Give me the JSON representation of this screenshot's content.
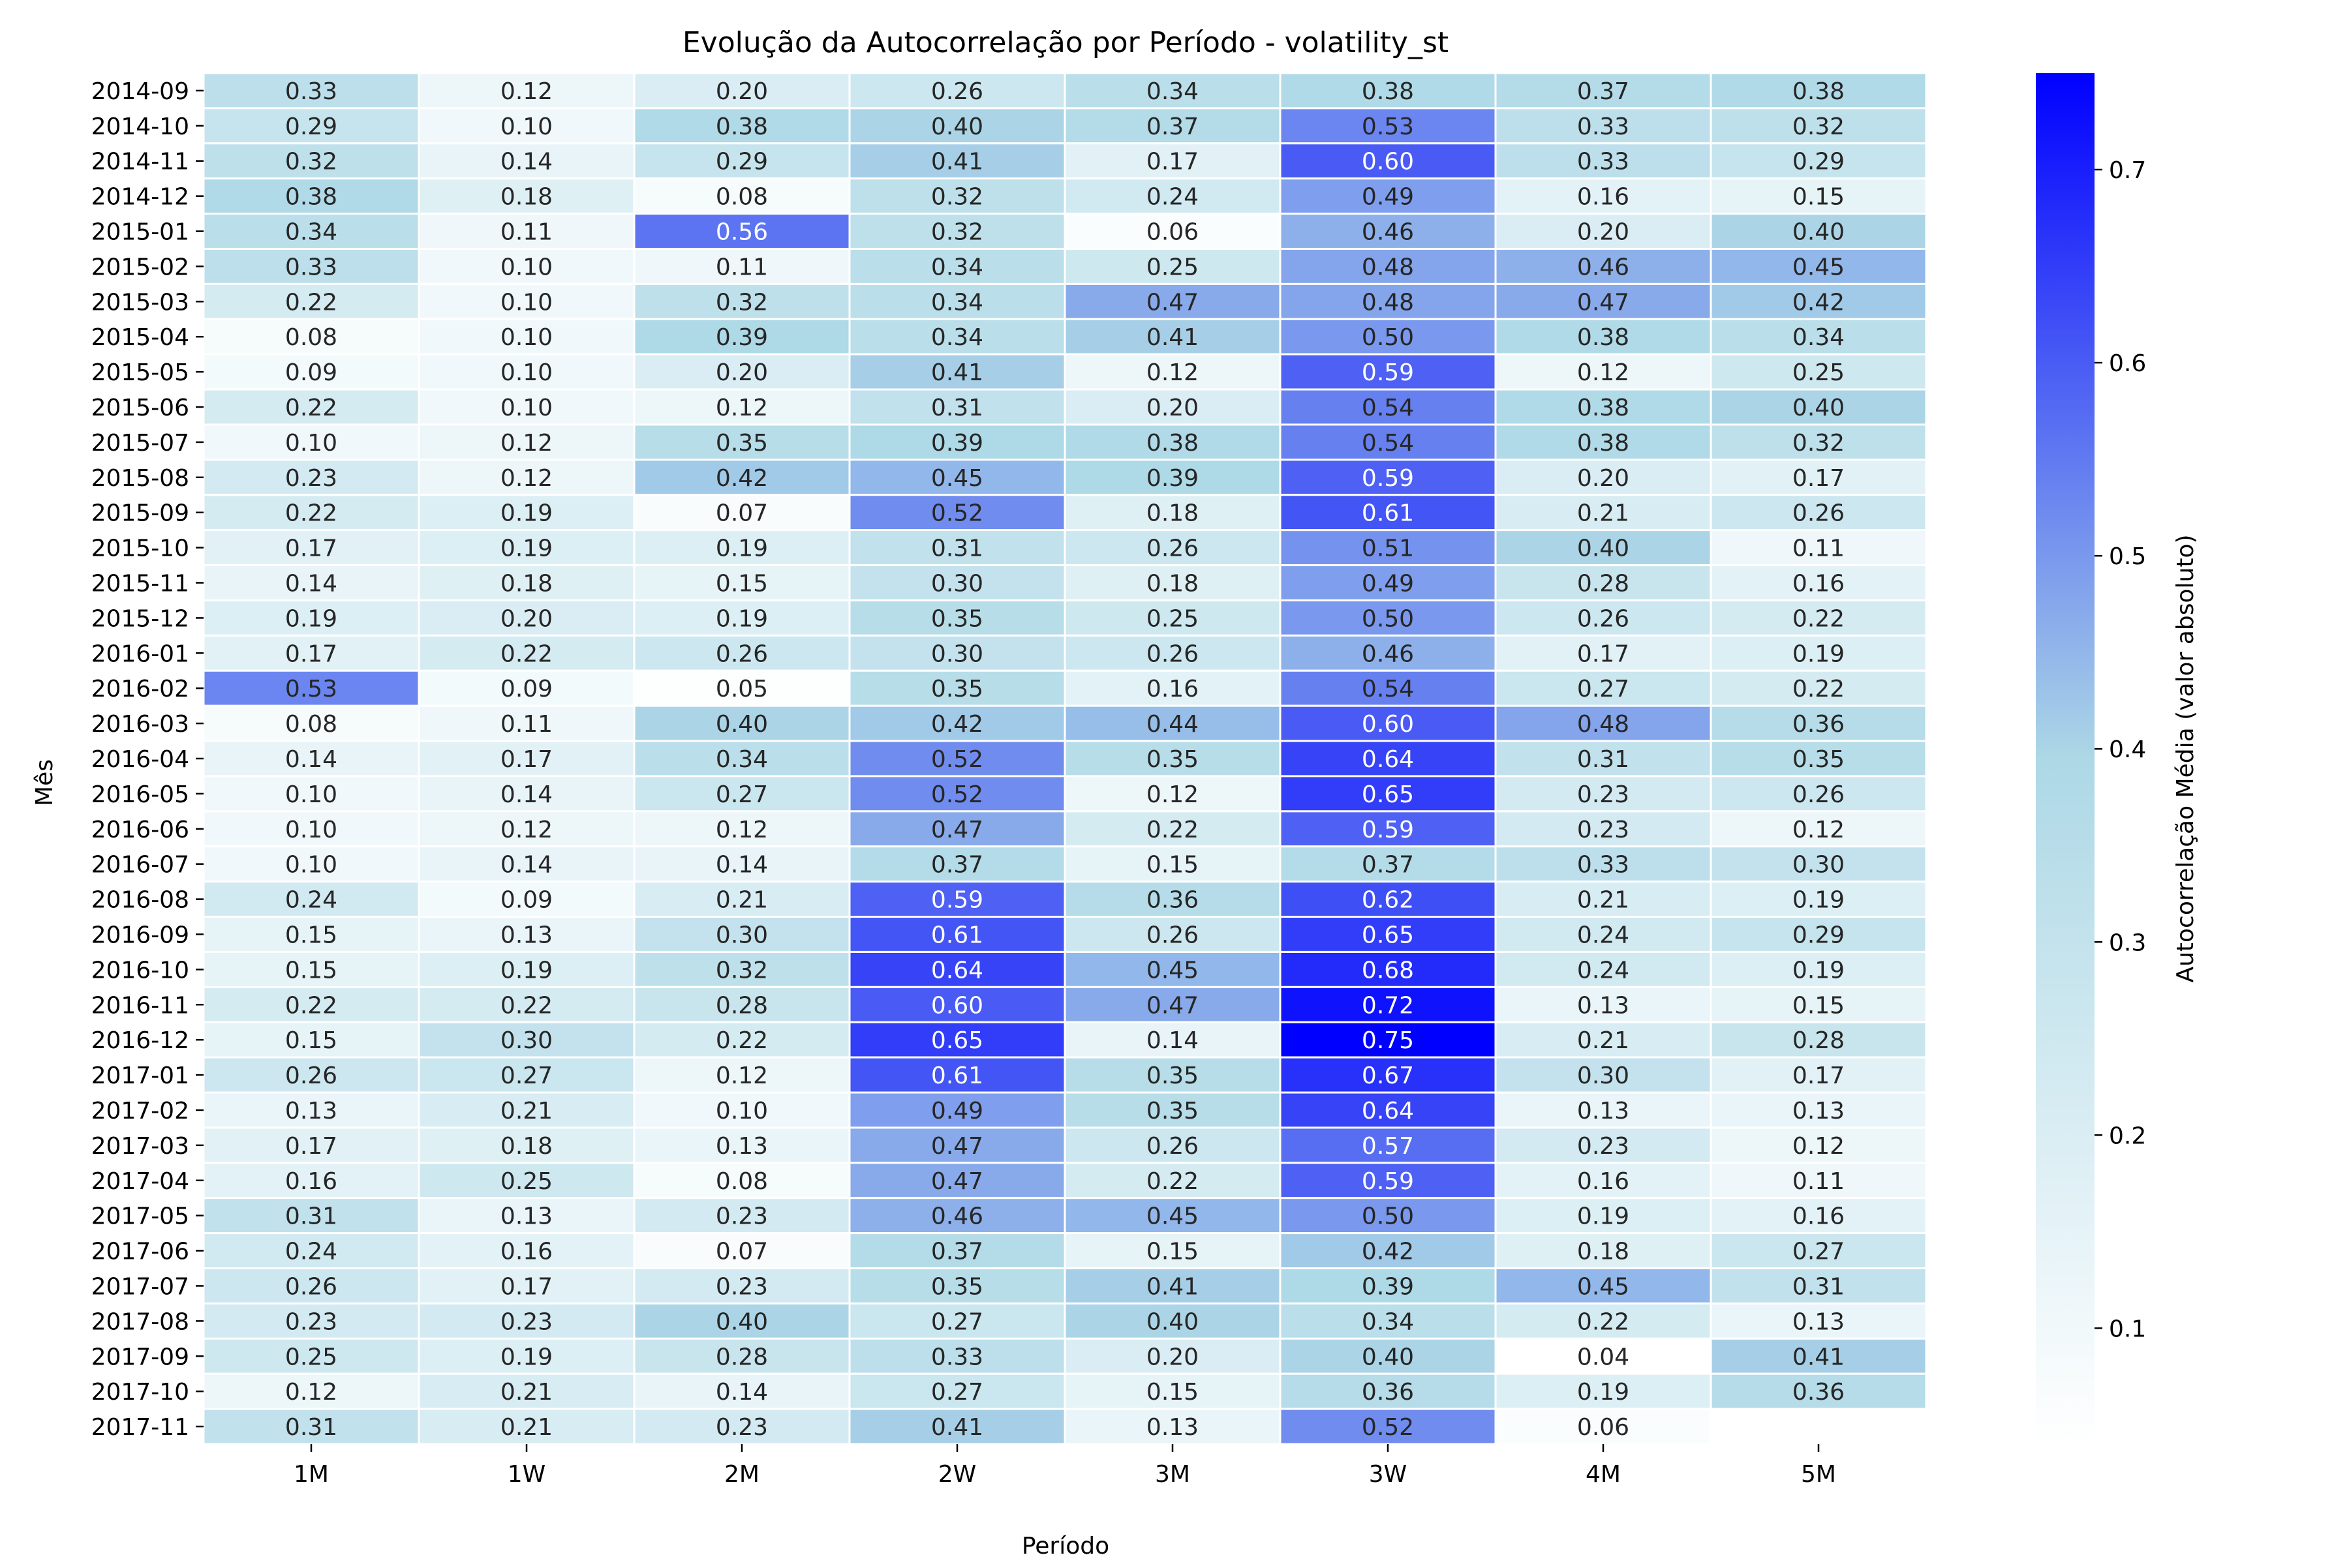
{
  "chart_data": {
    "type": "heatmap",
    "title": "Evolução da Autocorrelação por Período - volatility_st",
    "xlabel": "Período",
    "ylabel": "Mês",
    "colorbar_label": "Autocorrelação Média (valor absoluto)",
    "colorbar_range": [
      0.04,
      0.75
    ],
    "colorbar_ticks": [
      "0.1",
      "0.2",
      "0.3",
      "0.4",
      "0.5",
      "0.6",
      "0.7"
    ],
    "colorbar_tick_values": [
      0.1,
      0.2,
      0.3,
      0.4,
      0.5,
      0.6,
      0.7
    ],
    "colormap": [
      "#ffffff",
      "#add8e6",
      "#0000ff"
    ],
    "cell_border_color": "#ffffff",
    "columns": [
      "1M",
      "1W",
      "2M",
      "2W",
      "3M",
      "3W",
      "4M",
      "5M"
    ],
    "rows": [
      "2014-09",
      "2014-10",
      "2014-11",
      "2014-12",
      "2015-01",
      "2015-02",
      "2015-03",
      "2015-04",
      "2015-05",
      "2015-06",
      "2015-07",
      "2015-08",
      "2015-09",
      "2015-10",
      "2015-11",
      "2015-12",
      "2016-01",
      "2016-02",
      "2016-03",
      "2016-04",
      "2016-05",
      "2016-06",
      "2016-07",
      "2016-08",
      "2016-09",
      "2016-10",
      "2016-11",
      "2016-12",
      "2017-01",
      "2017-02",
      "2017-03",
      "2017-04",
      "2017-05",
      "2017-06",
      "2017-07",
      "2017-08",
      "2017-09",
      "2017-10",
      "2017-11"
    ],
    "values": [
      [
        0.33,
        0.12,
        0.2,
        0.26,
        0.34,
        0.38,
        0.37,
        0.38
      ],
      [
        0.29,
        0.1,
        0.38,
        0.4,
        0.37,
        0.53,
        0.33,
        0.32
      ],
      [
        0.32,
        0.14,
        0.29,
        0.41,
        0.17,
        0.6,
        0.33,
        0.29
      ],
      [
        0.38,
        0.18,
        0.08,
        0.32,
        0.24,
        0.49,
        0.16,
        0.15
      ],
      [
        0.34,
        0.11,
        0.56,
        0.32,
        0.06,
        0.46,
        0.2,
        0.4
      ],
      [
        0.33,
        0.1,
        0.11,
        0.34,
        0.25,
        0.48,
        0.46,
        0.45
      ],
      [
        0.22,
        0.1,
        0.32,
        0.34,
        0.47,
        0.48,
        0.47,
        0.42
      ],
      [
        0.08,
        0.1,
        0.39,
        0.34,
        0.41,
        0.5,
        0.38,
        0.34
      ],
      [
        0.09,
        0.1,
        0.2,
        0.41,
        0.12,
        0.59,
        0.12,
        0.25
      ],
      [
        0.22,
        0.1,
        0.12,
        0.31,
        0.2,
        0.54,
        0.38,
        0.4
      ],
      [
        0.1,
        0.12,
        0.35,
        0.39,
        0.38,
        0.54,
        0.38,
        0.32
      ],
      [
        0.23,
        0.12,
        0.42,
        0.45,
        0.39,
        0.59,
        0.2,
        0.17
      ],
      [
        0.22,
        0.19,
        0.07,
        0.52,
        0.18,
        0.61,
        0.21,
        0.26
      ],
      [
        0.17,
        0.19,
        0.19,
        0.31,
        0.26,
        0.51,
        0.4,
        0.11
      ],
      [
        0.14,
        0.18,
        0.15,
        0.3,
        0.18,
        0.49,
        0.28,
        0.16
      ],
      [
        0.19,
        0.2,
        0.19,
        0.35,
        0.25,
        0.5,
        0.26,
        0.22
      ],
      [
        0.17,
        0.22,
        0.26,
        0.3,
        0.26,
        0.46,
        0.17,
        0.19
      ],
      [
        0.53,
        0.09,
        0.05,
        0.35,
        0.16,
        0.54,
        0.27,
        0.22
      ],
      [
        0.08,
        0.11,
        0.4,
        0.42,
        0.44,
        0.6,
        0.48,
        0.36
      ],
      [
        0.14,
        0.17,
        0.34,
        0.52,
        0.35,
        0.64,
        0.31,
        0.35
      ],
      [
        0.1,
        0.14,
        0.27,
        0.52,
        0.12,
        0.65,
        0.23,
        0.26
      ],
      [
        0.1,
        0.12,
        0.12,
        0.47,
        0.22,
        0.59,
        0.23,
        0.12
      ],
      [
        0.1,
        0.14,
        0.14,
        0.37,
        0.15,
        0.37,
        0.33,
        0.3
      ],
      [
        0.24,
        0.09,
        0.21,
        0.59,
        0.36,
        0.62,
        0.21,
        0.19
      ],
      [
        0.15,
        0.13,
        0.3,
        0.61,
        0.26,
        0.65,
        0.24,
        0.29
      ],
      [
        0.15,
        0.19,
        0.32,
        0.64,
        0.45,
        0.68,
        0.24,
        0.19
      ],
      [
        0.22,
        0.22,
        0.28,
        0.6,
        0.47,
        0.72,
        0.13,
        0.15
      ],
      [
        0.15,
        0.3,
        0.22,
        0.65,
        0.14,
        0.75,
        0.21,
        0.28
      ],
      [
        0.26,
        0.27,
        0.12,
        0.61,
        0.35,
        0.67,
        0.3,
        0.17
      ],
      [
        0.13,
        0.21,
        0.1,
        0.49,
        0.35,
        0.64,
        0.13,
        0.13
      ],
      [
        0.17,
        0.18,
        0.13,
        0.47,
        0.26,
        0.57,
        0.23,
        0.12
      ],
      [
        0.16,
        0.25,
        0.08,
        0.47,
        0.22,
        0.59,
        0.16,
        0.11
      ],
      [
        0.31,
        0.13,
        0.23,
        0.46,
        0.45,
        0.5,
        0.19,
        0.16
      ],
      [
        0.24,
        0.16,
        0.07,
        0.37,
        0.15,
        0.42,
        0.18,
        0.27
      ],
      [
        0.26,
        0.17,
        0.23,
        0.35,
        0.41,
        0.39,
        0.45,
        0.31
      ],
      [
        0.23,
        0.23,
        0.4,
        0.27,
        0.4,
        0.34,
        0.22,
        0.13
      ],
      [
        0.25,
        0.19,
        0.28,
        0.33,
        0.2,
        0.4,
        0.04,
        0.41
      ],
      [
        0.12,
        0.21,
        0.14,
        0.27,
        0.15,
        0.36,
        0.19,
        0.36
      ],
      [
        0.31,
        0.21,
        0.23,
        0.41,
        0.13,
        0.52,
        0.06,
        null
      ]
    ]
  }
}
